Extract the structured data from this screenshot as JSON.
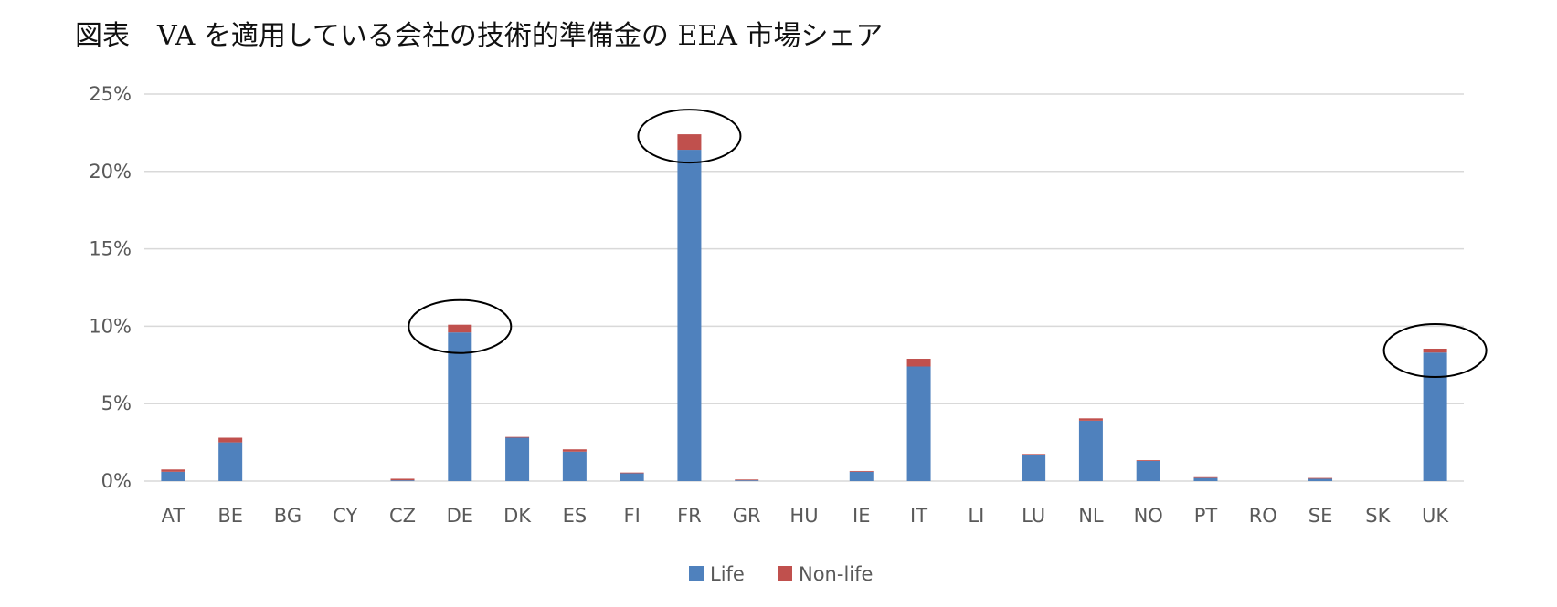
{
  "title": "図表　VA を適用している会社の技術的準備金の EEA 市場シェア",
  "chart_data": {
    "type": "bar",
    "stacked": true,
    "categories": [
      "AT",
      "BE",
      "BG",
      "CY",
      "CZ",
      "DE",
      "DK",
      "ES",
      "FI",
      "FR",
      "GR",
      "HU",
      "IE",
      "IT",
      "LI",
      "LU",
      "NL",
      "NO",
      "PT",
      "RO",
      "SE",
      "SK",
      "UK"
    ],
    "series": [
      {
        "name": "Life",
        "color": "#4F81BD",
        "values": [
          0.6,
          2.5,
          0,
          0,
          0.05,
          9.6,
          2.8,
          1.9,
          0.5,
          21.4,
          0.05,
          0,
          0.6,
          7.4,
          0,
          1.7,
          3.9,
          1.3,
          0.2,
          0,
          0.15,
          0,
          8.3
        ]
      },
      {
        "name": "Non-life",
        "color": "#C0504D",
        "values": [
          0.15,
          0.3,
          0,
          0,
          0.1,
          0.5,
          0.05,
          0.15,
          0.05,
          1.0,
          0.05,
          0,
          0.05,
          0.5,
          0,
          0.05,
          0.15,
          0.05,
          0.05,
          0,
          0.05,
          0,
          0.25
        ]
      }
    ],
    "yticks": [
      "0%",
      "5%",
      "10%",
      "15%",
      "20%",
      "25%"
    ],
    "ylim": [
      0,
      25
    ],
    "grid": true,
    "legend": "bottom",
    "highlighted_categories": [
      "DE",
      "FR",
      "UK"
    ]
  }
}
